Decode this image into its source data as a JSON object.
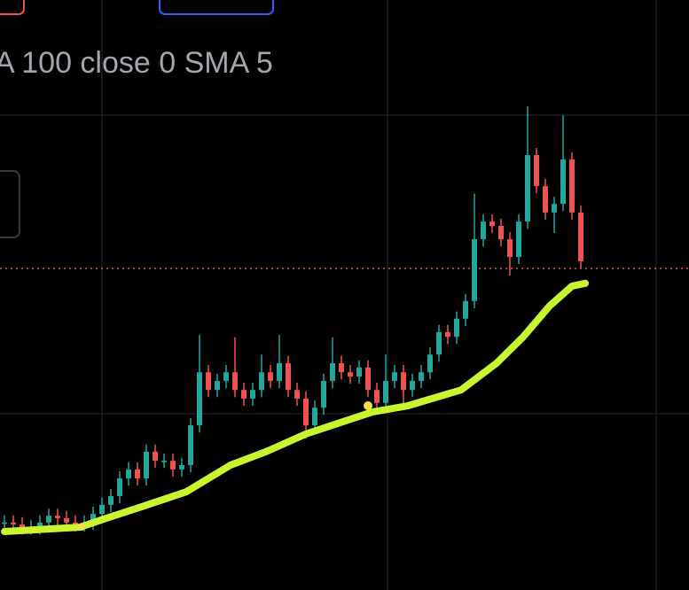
{
  "chart_data": {
    "type": "candlestick",
    "title": "A 100 close 0 SMA 5",
    "ylim": [
      0,
      100
    ],
    "up_color": "#26a69a",
    "down_color": "#ef5350",
    "open": [
      9.0,
      9.3,
      8.9,
      8.3,
      8.3,
      9.3,
      10.7,
      10.2,
      9.3,
      8.9,
      9.3,
      11.1,
      13.0,
      14.8,
      18.5,
      20.4,
      18.5,
      24.1,
      22.2,
      22.2,
      20.4,
      21.3,
      29.6,
      40.7,
      37.0,
      38.9,
      40.7,
      37.0,
      35.2,
      37.0,
      40.7,
      38.9,
      42.6,
      37.0,
      35.2,
      29.6,
      33.3,
      38.9,
      42.6,
      40.7,
      39.8,
      41.7,
      37.0,
      34.3,
      38.9,
      40.7,
      37.0,
      38.9,
      40.7,
      44.4,
      49.1,
      48.1,
      51.9,
      55.6,
      68.5,
      72.2,
      71.3,
      68.5,
      64.8,
      72.2,
      86.1,
      79.6,
      74.1,
      75.9,
      85.2,
      74.1
    ],
    "high": [
      10.8,
      10.8,
      10.4,
      9.8,
      10.8,
      12.2,
      12.2,
      11.7,
      10.8,
      10.8,
      12.6,
      14.5,
      16.3,
      20.0,
      21.9,
      21.9,
      25.6,
      25.6,
      23.7,
      23.7,
      22.8,
      31.1,
      48.5,
      42.2,
      40.4,
      42.2,
      48.0,
      38.5,
      38.5,
      44.4,
      42.2,
      48.5,
      44.1,
      38.5,
      36.7,
      34.8,
      40.4,
      48.0,
      44.1,
      42.2,
      43.2,
      43.2,
      38.5,
      44.4,
      42.2,
      42.2,
      40.4,
      42.2,
      45.9,
      50.6,
      50.6,
      53.4,
      57.1,
      78.0,
      73.7,
      73.7,
      72.8,
      70.0,
      73.7,
      96.3,
      87.6,
      81.1,
      77.4,
      94.4,
      86.7,
      75.6
    ],
    "low": [
      7.5,
      7.4,
      6.8,
      6.8,
      6.8,
      7.8,
      8.7,
      7.8,
      7.4,
      7.4,
      7.8,
      9.6,
      11.5,
      13.3,
      17.0,
      17.0,
      17.0,
      20.7,
      20.7,
      18.9,
      18.9,
      19.8,
      28.1,
      35.5,
      35.5,
      37.4,
      35.5,
      33.7,
      33.7,
      35.5,
      37.4,
      37.4,
      35.5,
      33.7,
      26.8,
      28.1,
      31.8,
      37.4,
      39.2,
      38.3,
      38.3,
      35.5,
      32.8,
      32.8,
      37.4,
      33.5,
      35.5,
      37.4,
      39.2,
      42.9,
      46.6,
      46.6,
      50.4,
      54.1,
      67.0,
      69.8,
      67.0,
      60.9,
      63.3,
      70.7,
      78.1,
      72.6,
      69.8,
      74.4,
      72.6,
      62.4
    ],
    "close": [
      9.3,
      8.9,
      8.3,
      8.3,
      9.3,
      10.7,
      10.2,
      9.3,
      8.9,
      9.3,
      11.1,
      13.0,
      14.8,
      18.5,
      20.4,
      18.5,
      24.1,
      22.2,
      22.2,
      20.4,
      21.3,
      29.6,
      40.7,
      37.0,
      38.9,
      40.7,
      37.0,
      35.2,
      37.0,
      40.7,
      38.9,
      42.6,
      37.0,
      35.2,
      29.6,
      33.3,
      38.9,
      42.6,
      40.7,
      39.8,
      41.7,
      37.0,
      34.3,
      38.9,
      40.7,
      37.0,
      38.9,
      40.7,
      44.4,
      49.1,
      48.1,
      51.9,
      55.6,
      68.5,
      72.2,
      71.3,
      68.5,
      64.8,
      72.2,
      86.1,
      79.6,
      74.1,
      75.9,
      85.2,
      74.1,
      63.9
    ],
    "sma": {
      "color": "#c8f52e",
      "x": [
        0,
        8.5,
        11.5,
        15.5,
        20.5,
        25.5,
        29.5,
        34,
        41.5,
        45.5,
        51.5,
        55.5,
        58.5,
        61.5,
        64,
        65.5
      ],
      "values": [
        7.4,
        8.3,
        10.2,
        12.6,
        15.7,
        21.3,
        24.1,
        27.8,
        32.4,
        33.7,
        37.0,
        42.6,
        48.1,
        54.6,
        58.7,
        59.3
      ]
    },
    "price_line": 62.4,
    "price_line_color": "#ef5350"
  }
}
